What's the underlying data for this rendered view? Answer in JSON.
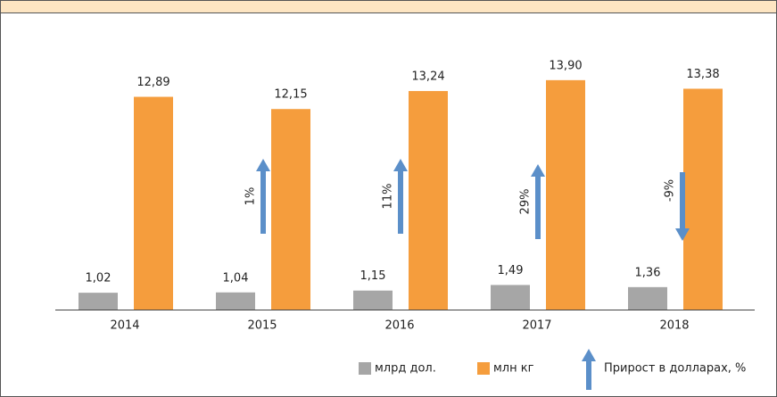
{
  "chart_data": {
    "type": "bar",
    "categories": [
      "2014",
      "2015",
      "2016",
      "2017",
      "2018"
    ],
    "series": [
      {
        "name": "млрд дол.",
        "color": "#a6a6a6",
        "values": [
          1.02,
          1.04,
          1.15,
          1.49,
          1.36
        ],
        "value_labels": [
          "1,02",
          "1,04",
          "1,15",
          "1,49",
          "1,36"
        ]
      },
      {
        "name": "млн кг",
        "color": "#f59d3d",
        "values": [
          12.89,
          12.15,
          13.24,
          13.9,
          13.38
        ],
        "value_labels": [
          "12,89",
          "12,15",
          "13,24",
          "13,90",
          "13,38"
        ]
      }
    ],
    "growth": {
      "name": "Прирост в долларах, %",
      "color": "#5b8fc9",
      "values": [
        null,
        1,
        11,
        29,
        -9
      ],
      "value_labels": [
        null,
        "1%",
        "11%",
        "29%",
        "-9%"
      ]
    },
    "ylim": [
      0,
      15
    ]
  }
}
